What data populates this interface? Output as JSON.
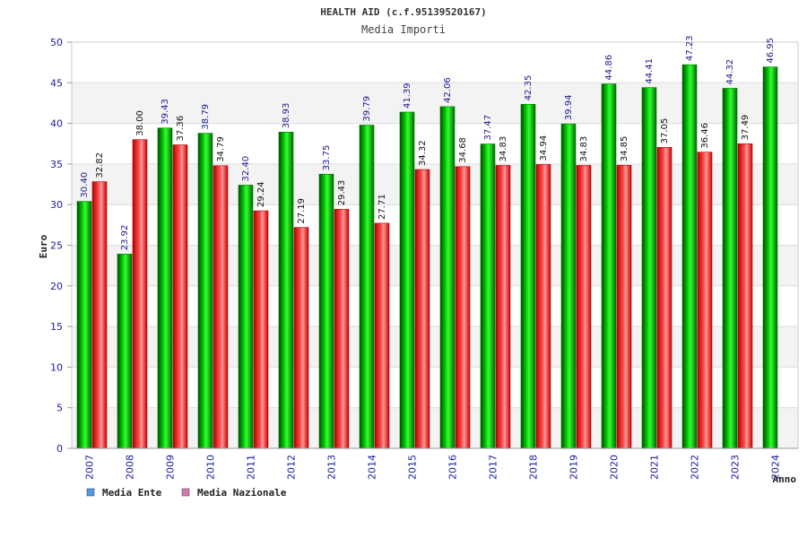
{
  "chart_data": {
    "type": "bar",
    "title": "HEALTH AID (c.f.95139520167)",
    "subtitle": "Media Importi",
    "ylabel": "Euro",
    "xlabel": "Anno",
    "ylim": [
      0,
      50
    ],
    "yticks": [
      0,
      5,
      10,
      15,
      20,
      25,
      30,
      35,
      40,
      45,
      50
    ],
    "grid": true,
    "legend_position": "bottom-left",
    "categories": [
      "2007",
      "2008",
      "2009",
      "2010",
      "2011",
      "2012",
      "2013",
      "2014",
      "2015",
      "2016",
      "2017",
      "2018",
      "2019",
      "2020",
      "2021",
      "2022",
      "2023",
      "2024"
    ],
    "series": [
      {
        "name": "Media Ente",
        "color": "#00b000",
        "legend_color": "#4f9be8",
        "values": [
          30.4,
          23.92,
          39.43,
          38.79,
          32.4,
          38.93,
          33.75,
          39.79,
          41.39,
          42.06,
          37.47,
          42.35,
          39.94,
          44.86,
          44.41,
          47.23,
          44.32,
          46.95
        ],
        "labels": [
          "30.40",
          "23.92",
          "39.43",
          "38.79",
          "32.40",
          "38.93",
          "33.75",
          "39.79",
          "41.39",
          "42.06",
          "37.47",
          "42.35",
          "39.94",
          "44.86",
          "44.41",
          "47.23",
          "44.32",
          "46.95"
        ]
      },
      {
        "name": "Media Nazionale",
        "color": "#e02020",
        "legend_color": "#d97ab8",
        "values": [
          32.82,
          38.0,
          37.36,
          34.79,
          29.24,
          27.19,
          29.43,
          27.71,
          34.32,
          34.68,
          34.83,
          34.94,
          34.83,
          34.85,
          37.05,
          36.46,
          37.49,
          null
        ],
        "labels": [
          "32.82",
          "38.00",
          "37.36",
          "34.79",
          "29.24",
          "27.19",
          "29.43",
          "27.71",
          "34.32",
          "34.68",
          "34.83",
          "34.94",
          "34.83",
          "34.85",
          "37.05",
          "36.46",
          "37.49",
          null
        ]
      }
    ]
  }
}
